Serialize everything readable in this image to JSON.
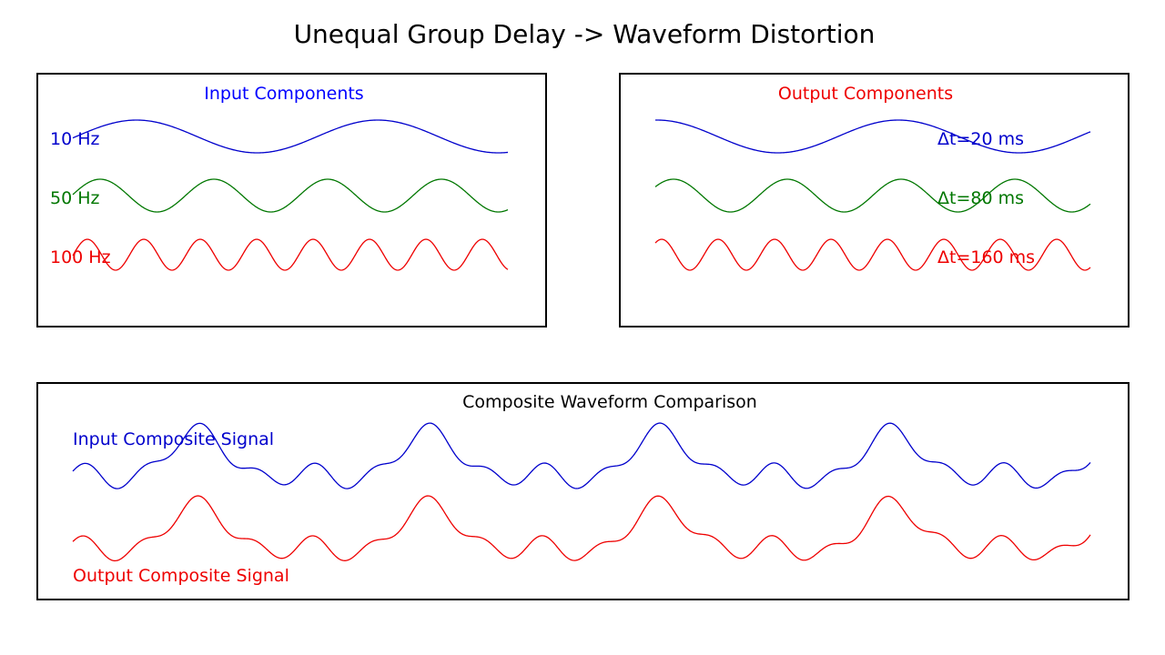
{
  "title": "Unequal Group Delay -> Waveform Distortion",
  "input_panel": {
    "title": "Input Components",
    "components": [
      {
        "label": "10 Hz",
        "color": "#0000cc"
      },
      {
        "label": "50 Hz",
        "color": "#007700"
      },
      {
        "label": "100 Hz",
        "color": "#ee0000"
      }
    ]
  },
  "output_panel": {
    "title": "Output Components",
    "components": [
      {
        "delay_label": "Δt=20 ms",
        "color": "#0000cc"
      },
      {
        "delay_label": "Δt=80 ms",
        "color": "#007700"
      },
      {
        "delay_label": "Δt=160 ms",
        "color": "#ee0000"
      }
    ]
  },
  "composite_panel": {
    "title": "Composite Waveform Comparison",
    "input_label": "Input Composite Signal",
    "output_label": "Output Composite Signal",
    "input_color": "#0000cc",
    "output_color": "#ee0000"
  },
  "colors": {
    "title_text": "#000000",
    "panel_border": "#000000",
    "input_title": "#0000ff",
    "output_title": "#ee0000"
  }
}
